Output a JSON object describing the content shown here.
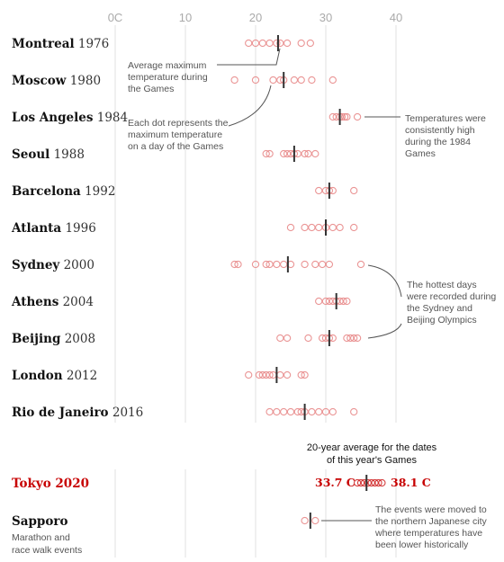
{
  "chart_data": {
    "type": "scatter",
    "title": "",
    "xlabel": "",
    "ylabel": "",
    "xlim": [
      0,
      40
    ],
    "x_ticks": [
      "0C",
      "10",
      "20",
      "30",
      "40"
    ],
    "grid": true,
    "colors": {
      "dot": "#e88a8a",
      "highlight": "#c70000",
      "mean_line": "#333333",
      "grid": "#e2e2e2",
      "text": "#121212"
    },
    "games": [
      {
        "city": "Montreal",
        "year": "1976",
        "avg": 23.2,
        "temps": [
          19,
          20,
          21,
          22,
          23,
          23.5,
          24.5,
          26.5,
          27.8
        ]
      },
      {
        "city": "Moscow",
        "year": "1980",
        "avg": 24.0,
        "temps": [
          17,
          20,
          22.5,
          23.5,
          24,
          25.5,
          26.5,
          28,
          31
        ]
      },
      {
        "city": "Los Angeles",
        "year": "1984",
        "avg": 32.0,
        "temps": [
          31,
          31.5,
          32,
          32.3,
          32.7,
          33,
          34.5
        ]
      },
      {
        "city": "Seoul",
        "year": "1988",
        "avg": 25.5,
        "temps": [
          21.5,
          22,
          24,
          24.5,
          25,
          25.5,
          26,
          27,
          27.5,
          28.5
        ]
      },
      {
        "city": "Barcelona",
        "year": "1992",
        "avg": 30.5,
        "temps": [
          29,
          30,
          30.5,
          31,
          34
        ]
      },
      {
        "city": "Atlanta",
        "year": "1996",
        "avg": 30.0,
        "temps": [
          25,
          27,
          28,
          29,
          30,
          31,
          32,
          34
        ]
      },
      {
        "city": "Sydney",
        "year": "2000",
        "avg": 24.6,
        "temps": [
          17,
          17.5,
          20,
          21.5,
          22,
          23,
          24,
          25,
          27,
          28.5,
          29.5,
          30.5,
          35
        ]
      },
      {
        "city": "Athens",
        "year": "2004",
        "avg": 31.5,
        "temps": [
          29,
          30,
          30.5,
          31,
          31.5,
          32,
          32.5,
          33
        ]
      },
      {
        "city": "Beijing",
        "year": "2008",
        "avg": 30.5,
        "temps": [
          23.5,
          24.5,
          27.5,
          29.5,
          30,
          30.5,
          31,
          33,
          33.5,
          34,
          34.5
        ]
      },
      {
        "city": "London",
        "year": "2012",
        "avg": 23.0,
        "temps": [
          19,
          20.5,
          21,
          21.5,
          22,
          22.5,
          23.5,
          24.5,
          26.5,
          27
        ]
      },
      {
        "city": "Rio de Janeiro",
        "year": "2016",
        "avg": 27.0,
        "temps": [
          22,
          23,
          24,
          25,
          26,
          26.5,
          27,
          28,
          29,
          30,
          31,
          34
        ]
      },
      {
        "city": "Tokyo",
        "year": "2020",
        "avg": 35.8,
        "temps": [
          34.5,
          35,
          35.5,
          36,
          36.5,
          37,
          37.5,
          38
        ],
        "highlight": true,
        "min_label": "33.7 C",
        "max_label": "38.1 C"
      },
      {
        "city": "Sapporo",
        "year": "",
        "avg": 27.8,
        "temps": [
          27,
          28.5
        ],
        "note": [
          "Marathon and",
          "race walk events"
        ]
      }
    ],
    "annotations": {
      "average": [
        "Average maximum",
        "temperature during",
        "the Games"
      ],
      "dot": [
        "Each dot represents the",
        "maximum temperature",
        "on a day of the Games"
      ],
      "la": [
        "Temperatures were",
        "consistently high",
        "during the 1984",
        "Games"
      ],
      "hottest": [
        "The hottest days",
        "were recorded during",
        "the Sydney and",
        "Beijing Olympics"
      ],
      "sapporo": [
        "The events were moved to",
        "the northern Japanese city",
        "where temperatures have",
        "been lower historically"
      ],
      "tokyo_header": [
        "20-year average for the dates",
        "of this year's Games"
      ]
    }
  }
}
